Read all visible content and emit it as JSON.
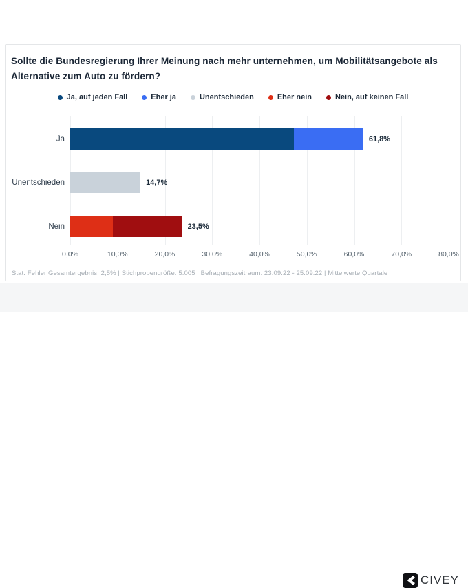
{
  "card": {
    "footnote": "Stat. Fehler Gesamtergebnis: 2,5% | Stichprobengröße: 5.005 | Befragungszeitraum: 23.09.22 - 25.09.22 | Mittelwerte Quartale"
  },
  "branding": {
    "logo_text": "CIVEY",
    "logo_icon": "civey-chevron-icon"
  },
  "colors": {
    "ja_auf_jeden_fall": "#09497E",
    "eher_ja": "#3A6DF3",
    "unentschieden": "#C9D2DA",
    "eher_nein": "#DE2F16",
    "nein_auf_keinen_fall": "#A00E10",
    "card_border": "#E4E6E8",
    "bottom_strip": "#F5F6F7",
    "gridline": "#EDEFF1",
    "title_text": "#1B2736",
    "tick_text": "#57646F",
    "footnote_text": "#A6ADB4"
  },
  "chart_data": {
    "type": "bar",
    "orientation": "horizontal",
    "stacked": true,
    "title": "Sollte die Bundesregierung Ihrer Meinung nach mehr unternehmen, um Mobilitätsangebote als Alternative zum Auto zu fördern?",
    "categories": [
      "Ja",
      "Unentschieden",
      "Nein"
    ],
    "series": [
      {
        "name": "Ja, auf jeden Fall",
        "color": "#09497E",
        "values": [
          47.2,
          0,
          0
        ]
      },
      {
        "name": "Eher ja",
        "color": "#3A6DF3",
        "values": [
          14.6,
          0,
          0
        ]
      },
      {
        "name": "Unentschieden",
        "color": "#C9D2DA",
        "values": [
          0,
          14.7,
          0
        ]
      },
      {
        "name": "Eher nein",
        "color": "#DE2F16",
        "values": [
          0,
          0,
          9.0
        ]
      },
      {
        "name": "Nein, auf keinen Fall",
        "color": "#A00E10",
        "values": [
          0,
          0,
          14.5
        ]
      }
    ],
    "totals": [
      61.8,
      14.7,
      23.5
    ],
    "total_labels": [
      "61,8%",
      "14,7%",
      "23,5%"
    ],
    "xlim": [
      0,
      80
    ],
    "x_ticks": [
      "0,0%",
      "10,0%",
      "20,0%",
      "30,0%",
      "40,0%",
      "50,0%",
      "60,0%",
      "70,0%",
      "80,0%"
    ],
    "xlabel": "",
    "ylabel": "",
    "legend_position": "top-center",
    "grid": "vertical"
  }
}
